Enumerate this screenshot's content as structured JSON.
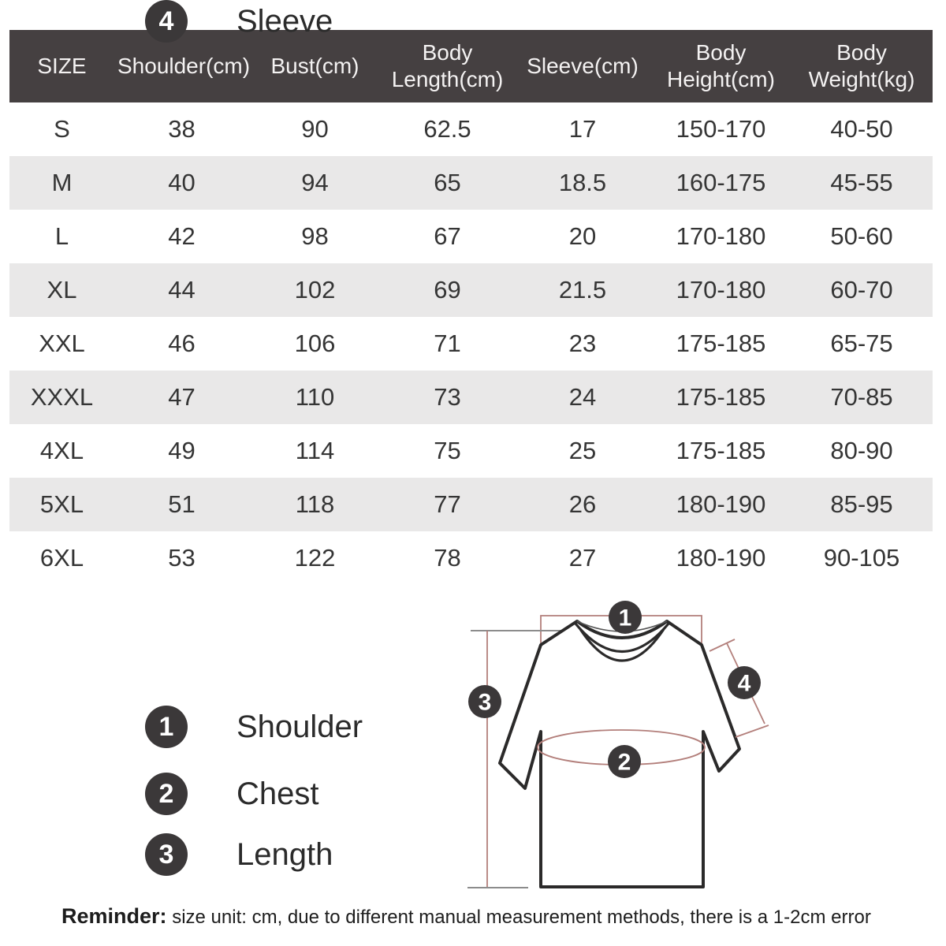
{
  "colors": {
    "header_bg": "#454041",
    "header_text": "#f4f2f2",
    "stripe_bg": "#e9e8e8",
    "cell_text": "#353535",
    "badge_bg": "#3b3839",
    "badge_text": "#ffffff",
    "guide_red": "#b37f7b",
    "guide_gray": "#8c8c8c",
    "shirt_line": "#2b2a2a"
  },
  "size_chart": {
    "columns": [
      "SIZE",
      "Shoulder(cm)",
      "Bust(cm)",
      "Body Length(cm)",
      "Sleeve(cm)",
      "Body Height(cm)",
      "Body Weight(kg)"
    ],
    "rows": [
      [
        "S",
        "38",
        "90",
        "62.5",
        "17",
        "150-170",
        "40-50"
      ],
      [
        "M",
        "40",
        "94",
        "65",
        "18.5",
        "160-175",
        "45-55"
      ],
      [
        "L",
        "42",
        "98",
        "67",
        "20",
        "170-180",
        "50-60"
      ],
      [
        "XL",
        "44",
        "102",
        "69",
        "21.5",
        "170-180",
        "60-70"
      ],
      [
        "XXL",
        "46",
        "106",
        "71",
        "23",
        "175-185",
        "65-75"
      ],
      [
        "XXXL",
        "47",
        "110",
        "73",
        "24",
        "175-185",
        "70-85"
      ],
      [
        "4XL",
        "49",
        "114",
        "75",
        "25",
        "175-185",
        "80-90"
      ],
      [
        "5XL",
        "51",
        "118",
        "77",
        "26",
        "180-190",
        "85-95"
      ],
      [
        "6XL",
        "53",
        "122",
        "78",
        "27",
        "180-190",
        "90-105"
      ]
    ]
  },
  "legend": {
    "items": [
      {
        "number": "1",
        "label": "Shoulder"
      },
      {
        "number": "2",
        "label": "Chest"
      },
      {
        "number": "3",
        "label": "Length"
      },
      {
        "number": "4",
        "label": "Sleeve"
      }
    ]
  },
  "diagram": {
    "badge_numbers": [
      "1",
      "2",
      "3",
      "4"
    ]
  },
  "reminder": {
    "label": "Reminder:",
    "text": " size unit: cm, due to different manual measurement methods, there is a 1-2cm error"
  }
}
